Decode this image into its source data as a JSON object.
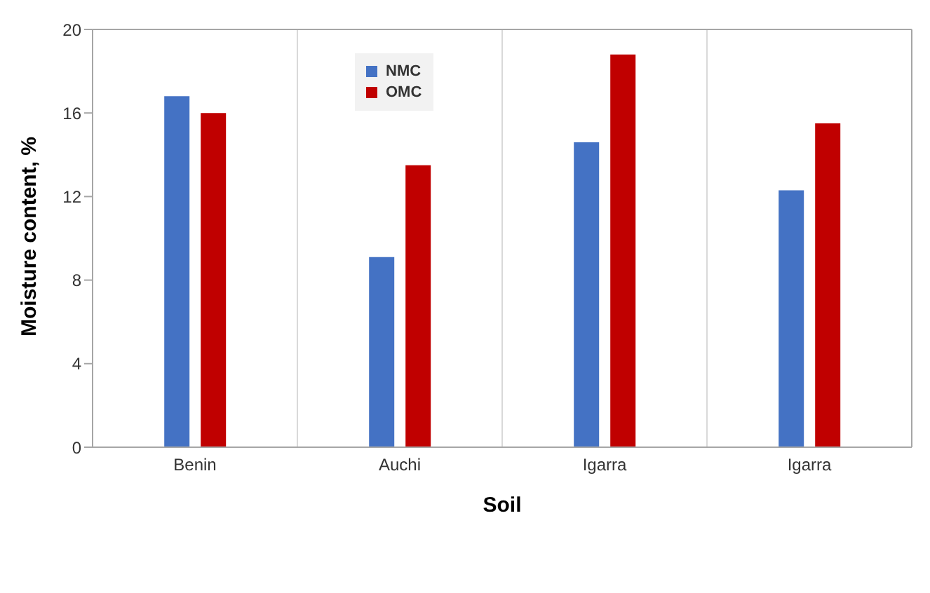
{
  "chart_data": {
    "type": "bar",
    "xlabel": "Soil",
    "ylabel": "Moisture content, %",
    "categories": [
      "Benin",
      "Auchi",
      "Igarra",
      "Igarra"
    ],
    "series": [
      {
        "name": "NMC",
        "color": "#4472c4",
        "values": [
          16.8,
          9.1,
          14.6,
          12.3
        ]
      },
      {
        "name": "OMC",
        "color": "#c00000",
        "values": [
          16.0,
          13.5,
          18.8,
          15.5
        ]
      }
    ],
    "ylim": [
      0,
      20
    ],
    "yticks": [
      0,
      4,
      8,
      12,
      16,
      20
    ],
    "grid": "x",
    "legend": "top left"
  }
}
